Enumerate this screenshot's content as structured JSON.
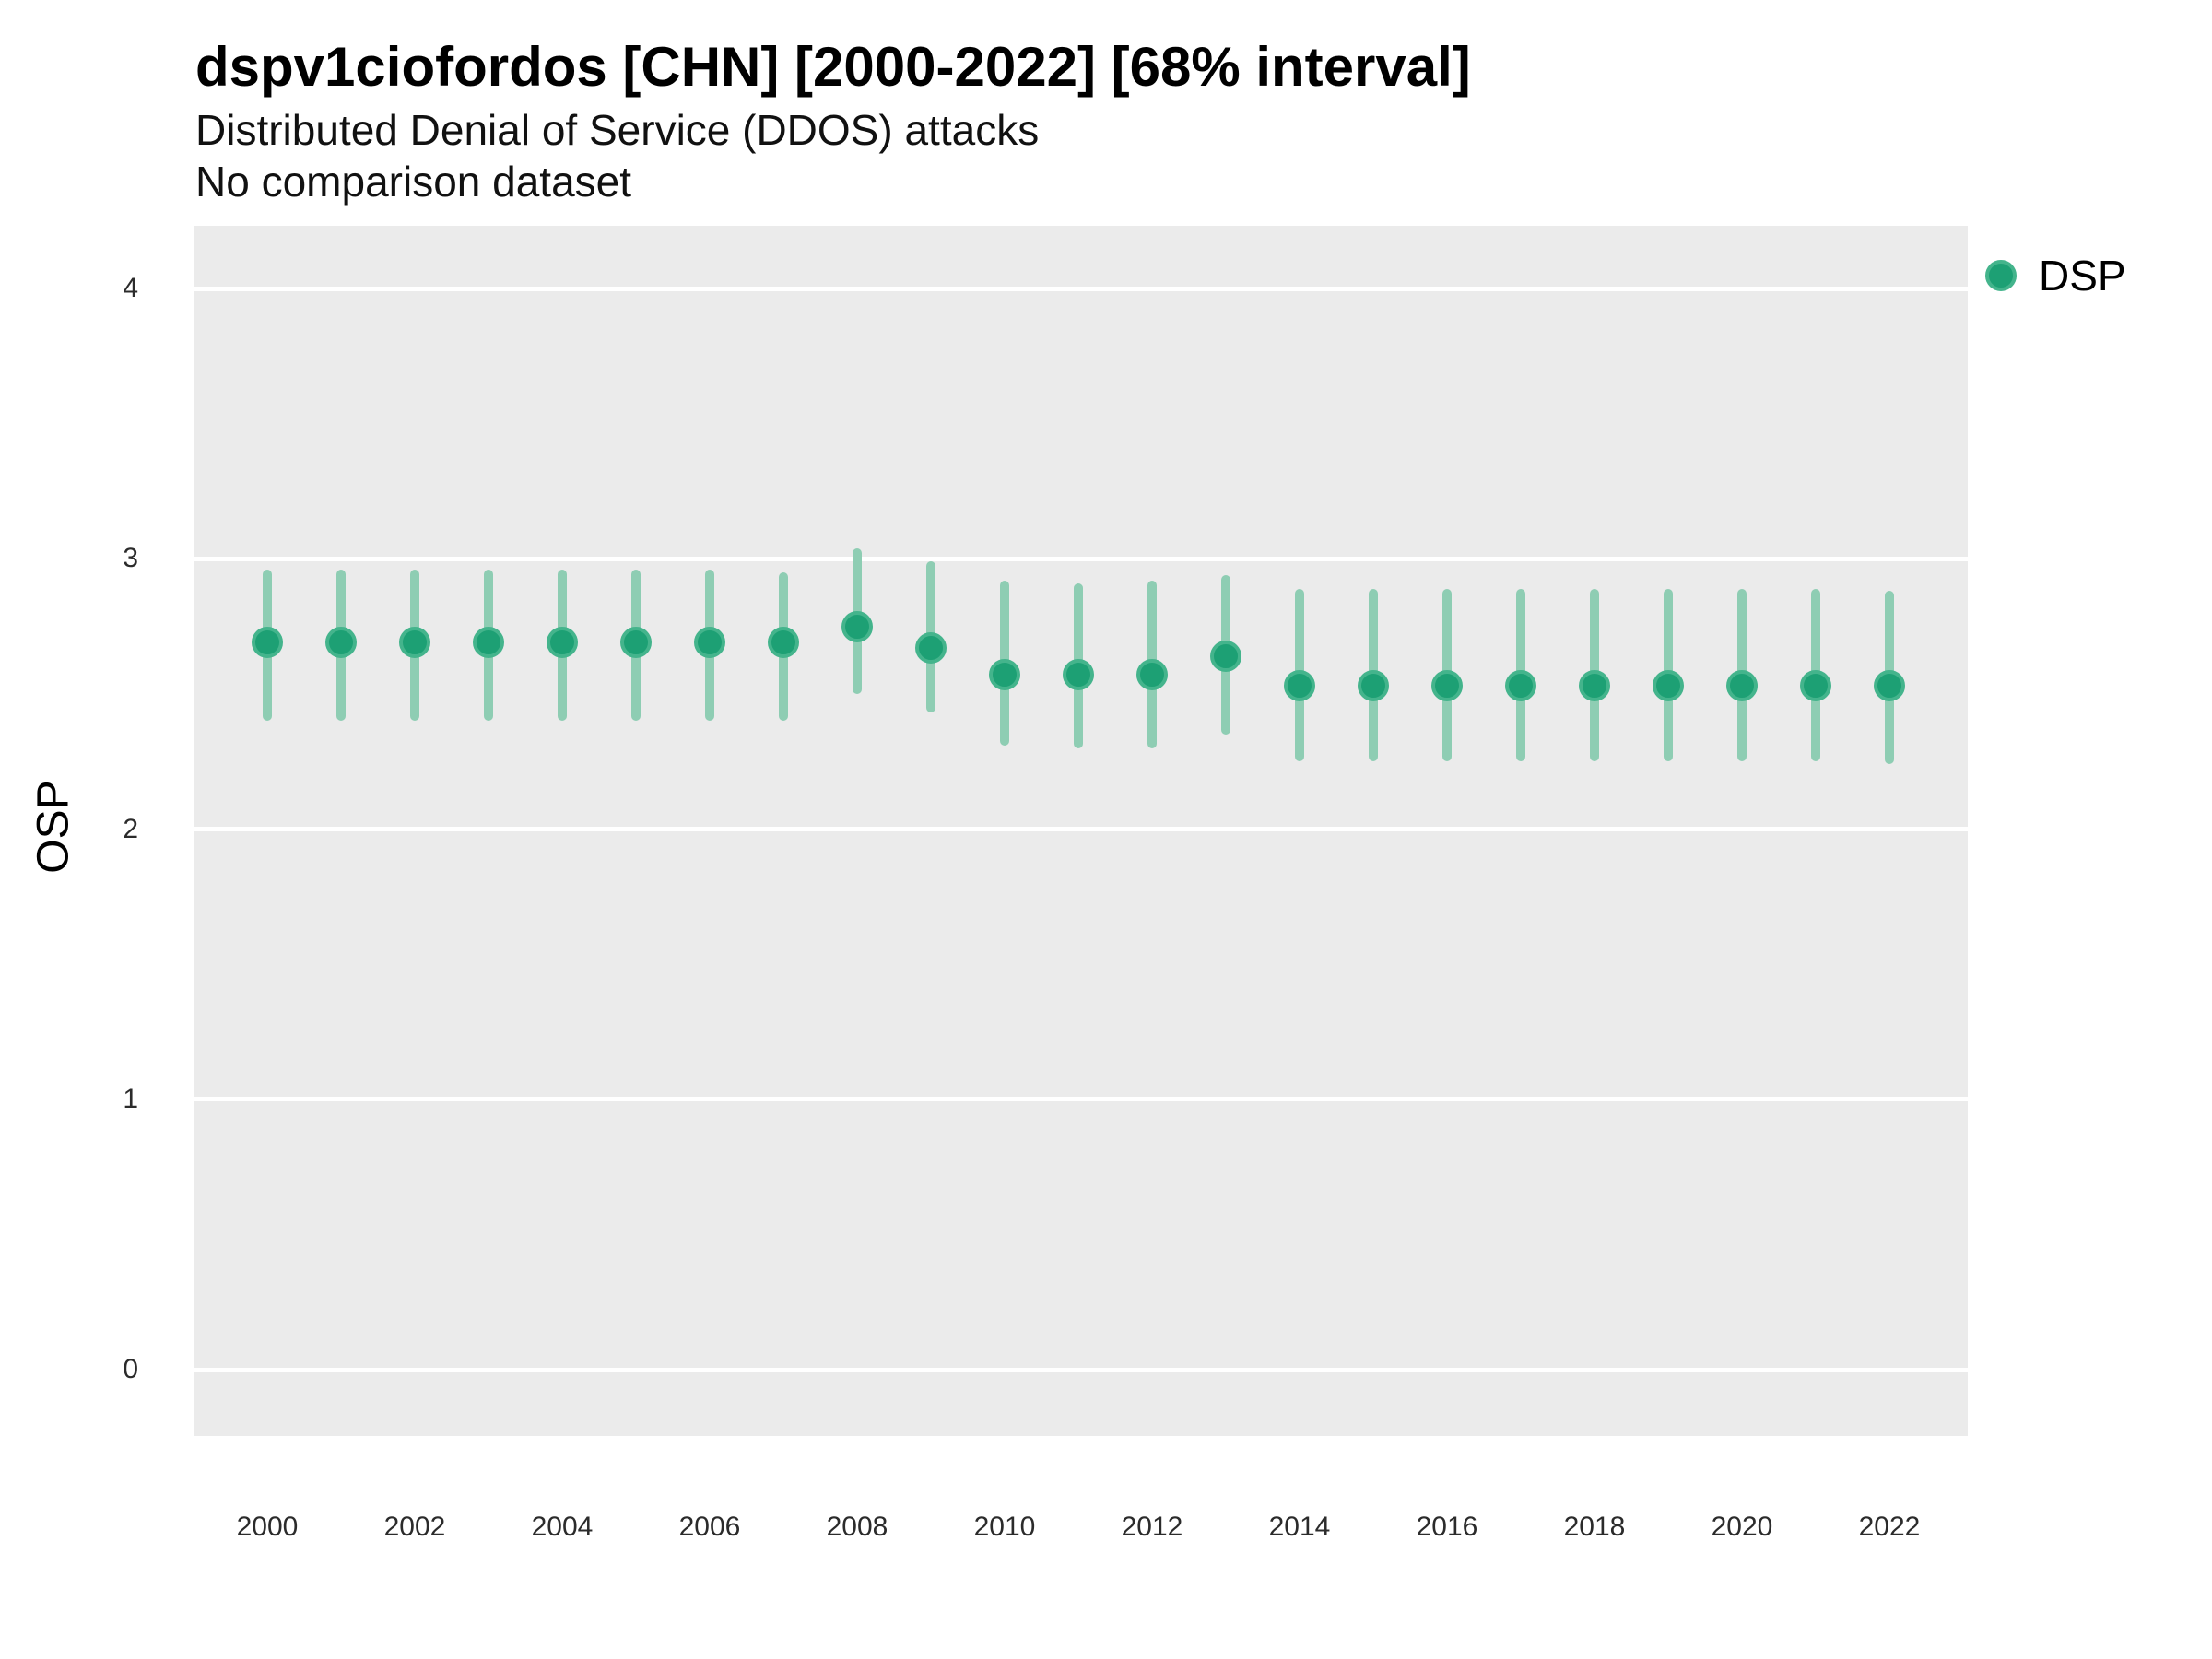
{
  "header": {
    "title": "dspv1ciofordos [CHN] [2000-2022] [68% interval]",
    "subtitle": "Distributed Denial of Service (DDOS) attacks",
    "note": "No comparison dataset"
  },
  "legend": {
    "position": "right",
    "items": [
      {
        "label": "DSP",
        "marker": "circle",
        "color": "#1da074"
      }
    ]
  },
  "colors": {
    "point_fill": "#1da074",
    "point_border": "#44b48c",
    "interval_bar": "#8ecdb3",
    "panel_background": "#ebebeb",
    "gridline": "#ffffff",
    "tick_text": "#2b2b2b",
    "title_text": "#000000"
  },
  "chart_data": {
    "type": "scatter",
    "subtype": "pointrange-error-bars",
    "title": "dspv1ciofordos [CHN] [2000-2022] [68% interval]",
    "subtitle": "Distributed Denial of Service (DDOS) attacks",
    "note": "No comparison dataset",
    "interval": "68%",
    "xlabel": "",
    "ylabel": "OSP",
    "ylim": [
      -0.25,
      4.25
    ],
    "yticks": [
      0,
      1,
      2,
      3,
      4
    ],
    "xticks": [
      2000,
      2002,
      2004,
      2006,
      2008,
      2010,
      2012,
      2014,
      2016,
      2018,
      2020,
      2022
    ],
    "grid": "major-horizontal-only",
    "legend_position": "right",
    "series": [
      {
        "name": "DSP",
        "points": [
          {
            "year": 2000,
            "value": 2.69,
            "lo": 2.4,
            "hi": 2.96
          },
          {
            "year": 2001,
            "value": 2.69,
            "lo": 2.4,
            "hi": 2.96
          },
          {
            "year": 2002,
            "value": 2.69,
            "lo": 2.4,
            "hi": 2.96
          },
          {
            "year": 2003,
            "value": 2.69,
            "lo": 2.4,
            "hi": 2.96
          },
          {
            "year": 2004,
            "value": 2.69,
            "lo": 2.4,
            "hi": 2.96
          },
          {
            "year": 2005,
            "value": 2.69,
            "lo": 2.4,
            "hi": 2.96
          },
          {
            "year": 2006,
            "value": 2.69,
            "lo": 2.4,
            "hi": 2.96
          },
          {
            "year": 2007,
            "value": 2.69,
            "lo": 2.4,
            "hi": 2.95
          },
          {
            "year": 2008,
            "value": 2.75,
            "lo": 2.5,
            "hi": 3.04
          },
          {
            "year": 2009,
            "value": 2.67,
            "lo": 2.43,
            "hi": 2.99
          },
          {
            "year": 2010,
            "value": 2.57,
            "lo": 2.31,
            "hi": 2.92
          },
          {
            "year": 2011,
            "value": 2.57,
            "lo": 2.3,
            "hi": 2.91
          },
          {
            "year": 2012,
            "value": 2.57,
            "lo": 2.3,
            "hi": 2.92
          },
          {
            "year": 2013,
            "value": 2.64,
            "lo": 2.35,
            "hi": 2.94
          },
          {
            "year": 2014,
            "value": 2.53,
            "lo": 2.25,
            "hi": 2.89
          },
          {
            "year": 2015,
            "value": 2.53,
            "lo": 2.25,
            "hi": 2.89
          },
          {
            "year": 2016,
            "value": 2.53,
            "lo": 2.25,
            "hi": 2.89
          },
          {
            "year": 2017,
            "value": 2.53,
            "lo": 2.25,
            "hi": 2.89
          },
          {
            "year": 2018,
            "value": 2.53,
            "lo": 2.25,
            "hi": 2.89
          },
          {
            "year": 2019,
            "value": 2.53,
            "lo": 2.25,
            "hi": 2.89
          },
          {
            "year": 2020,
            "value": 2.53,
            "lo": 2.25,
            "hi": 2.89
          },
          {
            "year": 2021,
            "value": 2.53,
            "lo": 2.25,
            "hi": 2.89
          },
          {
            "year": 2022,
            "value": 2.53,
            "lo": 2.24,
            "hi": 2.88
          }
        ]
      }
    ]
  }
}
